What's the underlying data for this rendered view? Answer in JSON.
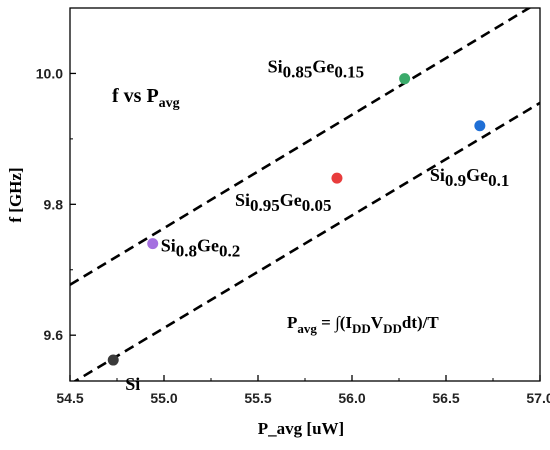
{
  "chart_data": {
    "type": "scatter",
    "title": "",
    "xlabel": "P_avg [uW]",
    "ylabel": "f [GHz]",
    "xlim": [
      54.5,
      57.0
    ],
    "ylim": [
      9.53,
      10.1
    ],
    "xticks": [
      "54.5",
      "55.0",
      "55.5",
      "56.0",
      "56.5",
      "57.0"
    ],
    "yticks": [
      "9.6",
      "9.8",
      "10.0"
    ],
    "grid": false,
    "legend": "none",
    "inner_title": {
      "main": "f vs P",
      "sub": "avg"
    },
    "formula": {
      "parts": [
        {
          "t": "P",
          "sub": false
        },
        {
          "t": "avg",
          "sub": true
        },
        {
          "t": " = ∫(I",
          "sub": false
        },
        {
          "t": "DD",
          "sub": true
        },
        {
          "t": "V",
          "sub": false
        },
        {
          "t": "DD",
          "sub": true
        },
        {
          "t": "dt)/T",
          "sub": false
        }
      ]
    },
    "points": [
      {
        "name": "Si",
        "x": 54.73,
        "y": 9.562,
        "color": "#3a3a3a",
        "label": [
          {
            "t": "Si",
            "sub": false
          }
        ]
      },
      {
        "name": "Si0.8Ge0.2",
        "x": 54.94,
        "y": 9.74,
        "color": "#a570e0",
        "label": [
          {
            "t": "Si",
            "sub": false
          },
          {
            "t": "0.8",
            "sub": true
          },
          {
            "t": "Ge",
            "sub": false
          },
          {
            "t": "0.2",
            "sub": true
          }
        ]
      },
      {
        "name": "Si0.95Ge0.05",
        "x": 55.92,
        "y": 9.84,
        "color": "#e83c3c",
        "label": [
          {
            "t": "Si",
            "sub": false
          },
          {
            "t": "0.95",
            "sub": true
          },
          {
            "t": "Ge",
            "sub": false
          },
          {
            "t": "0.05",
            "sub": true
          }
        ]
      },
      {
        "name": "Si0.85Ge0.15",
        "x": 56.28,
        "y": 9.992,
        "color": "#3aaa6a",
        "label": [
          {
            "t": "Si",
            "sub": false
          },
          {
            "t": "0.85",
            "sub": true
          },
          {
            "t": "Ge",
            "sub": false
          },
          {
            "t": "0.15",
            "sub": true
          }
        ]
      },
      {
        "name": "Si0.9Ge0.1",
        "x": 56.68,
        "y": 9.92,
        "color": "#1f6fd6",
        "label": [
          {
            "t": "Si",
            "sub": false
          },
          {
            "t": "0.9",
            "sub": true
          },
          {
            "t": "Ge",
            "sub": false
          },
          {
            "t": "0.1",
            "sub": true
          }
        ]
      }
    ],
    "trend_lines": [
      {
        "name": "upper",
        "style": "dashed",
        "x": [
          54.5,
          57.0
        ],
        "y": [
          9.677,
          10.11
        ]
      },
      {
        "name": "lower",
        "style": "dashed",
        "x": [
          54.5,
          57.0
        ],
        "y": [
          9.525,
          9.955
        ]
      }
    ]
  }
}
